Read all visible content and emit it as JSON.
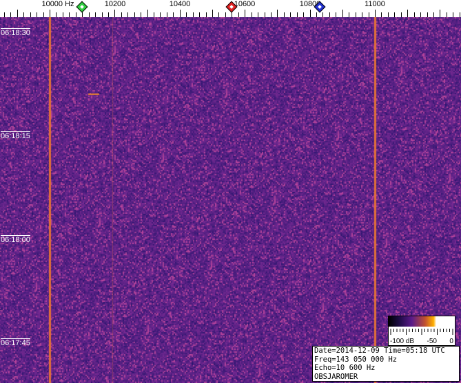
{
  "chart_data": {
    "type": "heatmap",
    "title": "",
    "x_axis": {
      "unit": "Hz",
      "range": [
        9846,
        11265
      ],
      "tick_labels": [
        "10000 Hz",
        "10200",
        "10400",
        "10600",
        "10800",
        "11000"
      ],
      "tick_values": [
        10000,
        10200,
        10400,
        10600,
        10800,
        11000
      ]
    },
    "y_axis": {
      "tick_labels": [
        "06:18:30",
        "06:18:15",
        "06:18:00",
        "06:17:45"
      ],
      "direction": "time increases upward"
    },
    "markers": [
      {
        "freq": 10100,
        "color": "#30d040"
      },
      {
        "freq": 10560,
        "color": "#e02020"
      },
      {
        "freq": 10830,
        "color": "#2030d0"
      }
    ],
    "carriers": [
      {
        "freq": 10000,
        "strength": "strong"
      },
      {
        "freq": 11000,
        "strength": "strong"
      },
      {
        "freq": 10195,
        "strength": "faint"
      }
    ],
    "colorbar": {
      "labels": [
        "-100 dB",
        "-50",
        "0"
      ],
      "range_db": [
        -100,
        0
      ]
    }
  },
  "info": {
    "line1": "Date=2014-12-09 Time=05:18 UTC",
    "line2": "Freq=143 050 000 Hz",
    "line3": "Echo=10 600 Hz",
    "line4": "OBSJAROMER"
  }
}
